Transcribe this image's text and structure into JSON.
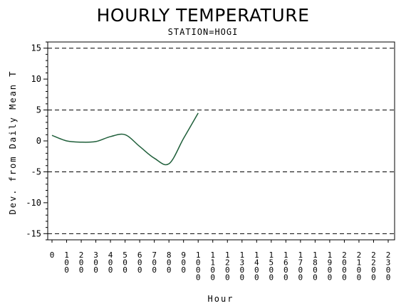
{
  "chart_data": {
    "type": "line",
    "title": "HOURLY TEMPERATURE",
    "subtitle": "STATION=HOGI",
    "xlabel": "Hour",
    "ylabel": "Dev. from Daily Mean T",
    "x_categories": [
      "0",
      "100",
      "200",
      "300",
      "400",
      "500",
      "600",
      "700",
      "800",
      "900",
      "1000",
      "1100",
      "1200",
      "1300",
      "1400",
      "1500",
      "1600",
      "1700",
      "1800",
      "1900",
      "2000",
      "2100",
      "2200",
      "2300"
    ],
    "y_ticks": [
      15,
      10,
      5,
      0,
      -5,
      -10,
      -15
    ],
    "ylim": [
      -16,
      16
    ],
    "reference_lines": [
      15,
      5,
      -5,
      -15
    ],
    "series": [
      {
        "x": [
          "0",
          "100",
          "200",
          "300",
          "400",
          "500",
          "600",
          "700",
          "800",
          "900",
          "1000"
        ],
        "values": [
          0.9,
          0.0,
          -0.2,
          -0.1,
          0.7,
          1.0,
          -0.9,
          -2.8,
          -3.7,
          0.4,
          4.5
        ]
      }
    ]
  },
  "colors": {
    "line": "#1f5f3a",
    "axis": "#000000",
    "reference_line": "#000000"
  }
}
